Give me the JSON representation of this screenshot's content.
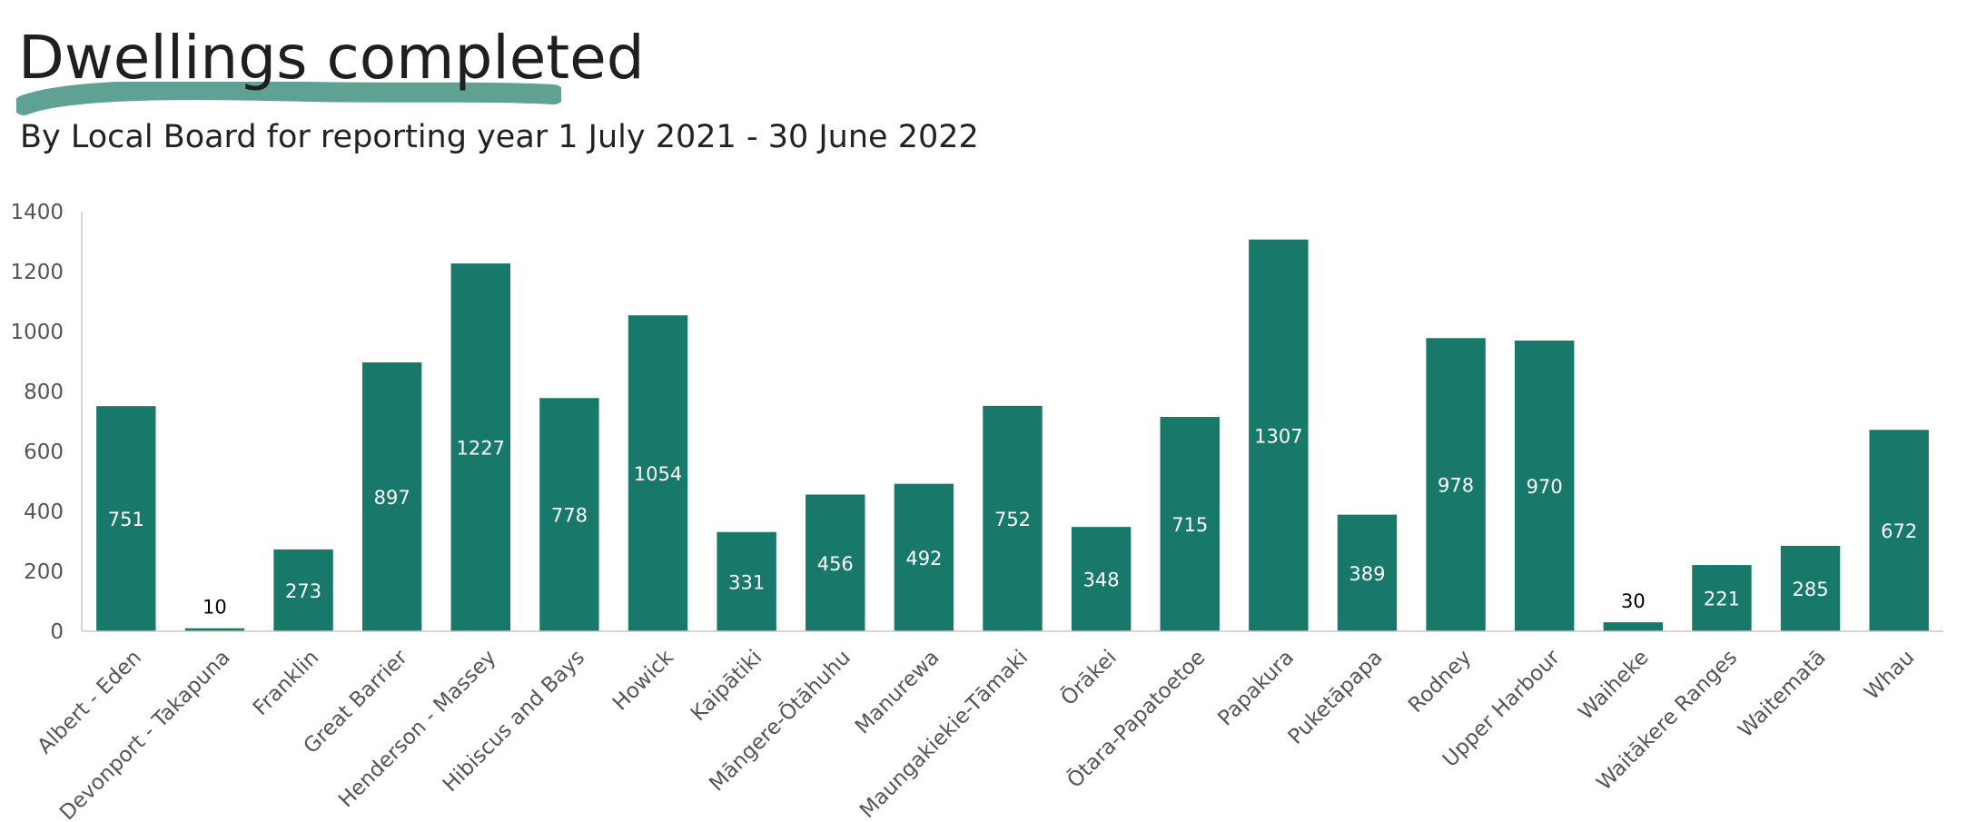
{
  "chart_data": {
    "type": "bar",
    "title": "Dwellings completed",
    "subtitle": "By Local Board for reporting year 1 July 2021 - 30 June 2022",
    "xlabel": "",
    "ylabel": "",
    "categories": [
      "Albert - Eden",
      "Devonport - Takapuna",
      "Franklin",
      "Great Barrier",
      "Henderson - Massey",
      "Hibiscus and Bays",
      "Howick",
      "Kaipātiki",
      "Māngere-Ōtāhuhu",
      "Manurewa",
      "Maungakiekie-Tāmaki",
      "Ōrākei",
      "Ōtara-Papatoetoe",
      "Papakura",
      "Puketāpapa",
      "Rodney",
      "Upper Harbour",
      "Waiheke",
      "Waitākere Ranges",
      "Waitematā",
      "Whau"
    ],
    "values": [
      751,
      10,
      273,
      897,
      1227,
      778,
      1054,
      331,
      456,
      492,
      752,
      348,
      715,
      1307,
      389,
      978,
      970,
      30,
      221,
      285,
      672
    ],
    "ylim": [
      0,
      1400
    ],
    "yticks": [
      0,
      200,
      400,
      600,
      800,
      1000,
      1200,
      1400
    ],
    "grid": false,
    "legend": "none",
    "colors": {
      "bar": "#18786A",
      "underline": "#5FA294",
      "label_inside": "#FFFFFF",
      "label_outside": "#000000",
      "axis": "#C8C8C8"
    }
  }
}
